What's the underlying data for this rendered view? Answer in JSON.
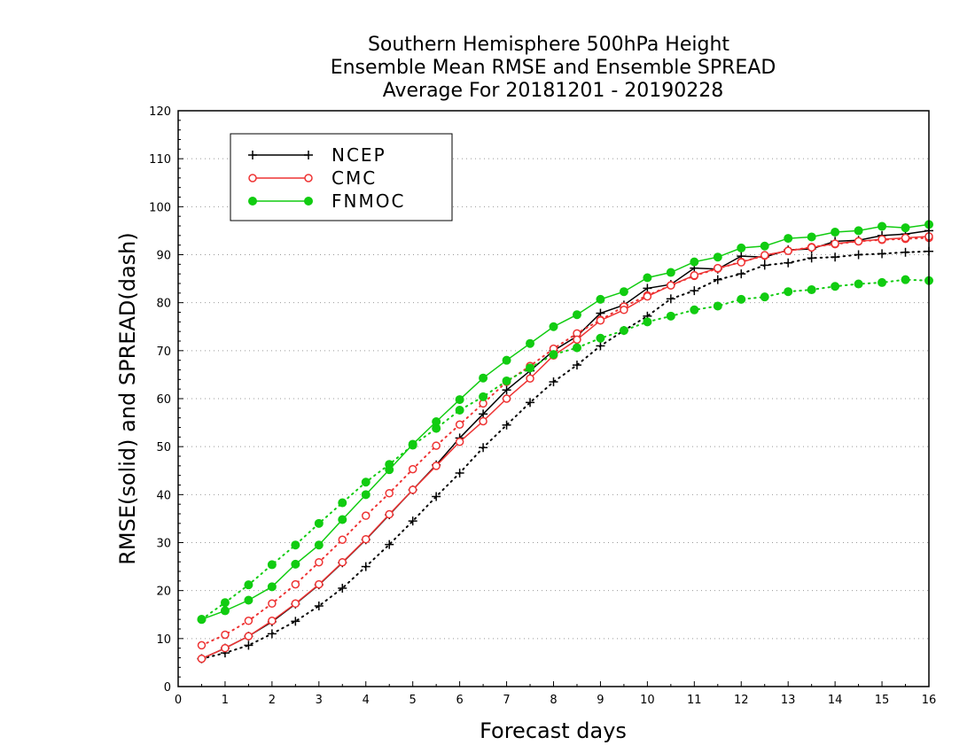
{
  "chart_data": {
    "type": "line",
    "title": [
      "Southern Hemisphere 500hPa Height",
      "Ensemble Mean RMSE and Ensemble SPREAD",
      "Average For 20181201 - 20190228"
    ],
    "xlabel": "Forecast days",
    "ylabel": "RMSE(solid) and SPREAD(dash)",
    "xlim": [
      0,
      16
    ],
    "ylim": [
      0,
      120
    ],
    "xticks": [
      0,
      1,
      2,
      3,
      4,
      5,
      6,
      7,
      8,
      9,
      10,
      11,
      12,
      13,
      14,
      15,
      16
    ],
    "yticks": [
      0,
      10,
      20,
      30,
      40,
      50,
      60,
      70,
      80,
      90,
      100,
      110,
      120
    ],
    "grid": "horizontal dotted",
    "legend_position": "top-left",
    "x": [
      0.5,
      1,
      1.5,
      2,
      2.5,
      3,
      3.5,
      4,
      4.5,
      5,
      5.5,
      6,
      6.5,
      7,
      7.5,
      8,
      8.5,
      9,
      9.5,
      10,
      10.5,
      11,
      11.5,
      12,
      12.5,
      13,
      13.5,
      14,
      14.5,
      15,
      15.5,
      16
    ],
    "series": [
      {
        "name": "NCEP",
        "color": "#000000",
        "marker": "plus",
        "rmse": [
          5.8,
          8.0,
          10.5,
          13.5,
          17.2,
          21.2,
          25.8,
          30.6,
          35.8,
          41.0,
          46.2,
          51.8,
          56.8,
          61.8,
          65.8,
          70.0,
          73.0,
          77.8,
          79.5,
          83.0,
          83.8,
          87.2,
          87.0,
          89.7,
          89.5,
          91.0,
          91.2,
          92.8,
          93.0,
          94.0,
          94.3,
          95.0
        ],
        "spread": [
          5.8,
          7.0,
          8.6,
          11.0,
          13.6,
          16.8,
          20.5,
          25.0,
          29.6,
          34.5,
          39.6,
          44.5,
          49.8,
          54.5,
          59.2,
          63.5,
          67.0,
          71.0,
          74.2,
          77.2,
          80.8,
          82.5,
          84.8,
          86.0,
          87.8,
          88.3,
          89.3,
          89.5,
          90.0,
          90.2,
          90.5,
          90.7
        ]
      },
      {
        "name": "CMC",
        "color": "#ee3333",
        "marker": "open-circle",
        "rmse": [
          5.8,
          8.0,
          10.5,
          13.7,
          17.3,
          21.3,
          25.9,
          30.7,
          35.9,
          41.0,
          46.0,
          51.0,
          55.3,
          60.0,
          64.2,
          69.0,
          72.3,
          76.3,
          78.5,
          81.3,
          83.6,
          85.7,
          87.2,
          88.4,
          89.9,
          90.8,
          91.5,
          92.3,
          92.8,
          93.2,
          93.5,
          93.8
        ],
        "spread": [
          8.6,
          10.8,
          13.7,
          17.3,
          21.3,
          25.9,
          30.6,
          35.6,
          40.3,
          45.3,
          50.2,
          54.6,
          59.0,
          63.5,
          66.8,
          70.4,
          73.6,
          76.4,
          79.2,
          81.5,
          83.6,
          85.6,
          87.1,
          88.5,
          89.8,
          90.8,
          91.6,
          92.2,
          92.8,
          93.1,
          93.3,
          93.5
        ]
      },
      {
        "name": "FNMOC",
        "color": "#11cc11",
        "marker": "filled-circle",
        "rmse": [
          14.0,
          15.8,
          18.0,
          20.8,
          25.5,
          29.5,
          34.8,
          40.0,
          45.2,
          50.5,
          55.2,
          59.8,
          64.3,
          68.0,
          71.5,
          75.0,
          77.5,
          80.7,
          82.3,
          85.2,
          86.3,
          88.5,
          89.5,
          91.4,
          91.8,
          93.4,
          93.7,
          94.7,
          95.0,
          95.9,
          95.6,
          96.3
        ],
        "spread": [
          14.0,
          17.5,
          21.2,
          25.4,
          29.5,
          34.0,
          38.3,
          42.6,
          46.3,
          50.3,
          53.8,
          57.6,
          60.4,
          63.7,
          66.4,
          69.2,
          70.6,
          72.6,
          74.2,
          76.0,
          77.2,
          78.5,
          79.3,
          80.7,
          81.2,
          82.3,
          82.7,
          83.4,
          83.9,
          84.2,
          84.8,
          84.6
        ]
      }
    ]
  }
}
